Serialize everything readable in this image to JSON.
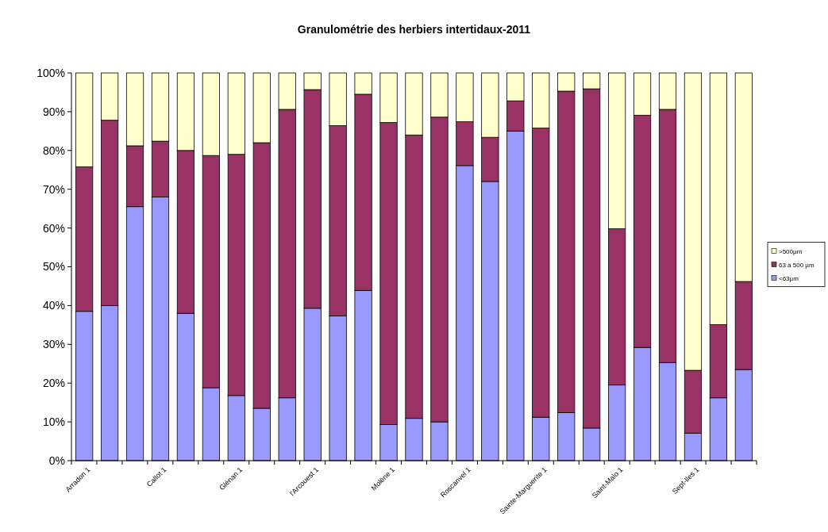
{
  "chart_data": {
    "type": "bar",
    "title": "Granulométrie des herbiers intertidaux-2011",
    "stacked": true,
    "categories": [
      "Arradon 1",
      null,
      null,
      "Callot 1",
      null,
      null,
      "Glénan 1",
      null,
      null,
      "l'Arcouest 1",
      null,
      null,
      "Molène 1",
      null,
      null,
      "Roscanvel 1",
      null,
      null,
      "Sainte-Marguerite 1",
      null,
      null,
      "Saint-Malo 1",
      null,
      null,
      "Sept-Iles 1",
      null,
      null
    ],
    "series": [
      {
        "name": "<63µm",
        "color": "#9999ff",
        "values": [
          38.5,
          40,
          65.5,
          68,
          38,
          18.8,
          16.8,
          13.5,
          16.2,
          39.3,
          37.3,
          43.9,
          9.3,
          10.9,
          10,
          76.1,
          72,
          85,
          11.2,
          12.4,
          8.4,
          19.5,
          29.2,
          25.3,
          7.1,
          16.2,
          23.5
        ]
      },
      {
        "name": "63 à 500 µm",
        "color": "#993366",
        "values": [
          37.3,
          47.8,
          15.7,
          14.4,
          42,
          59.9,
          62.2,
          68.5,
          74.4,
          56.4,
          49.1,
          50.6,
          77.9,
          73.1,
          78.6,
          11.3,
          11.4,
          7.8,
          74.6,
          82.9,
          87.5,
          40.3,
          59.9,
          65.3,
          16.2,
          18.9,
          22.7
        ]
      },
      {
        "name": ">500µm",
        "color": "#ffffcc",
        "values": [
          24.2,
          12.2,
          18.8,
          17.6,
          20,
          21.3,
          21,
          18,
          9.4,
          4.3,
          13.6,
          5.5,
          12.8,
          16,
          11.4,
          12.6,
          16.6,
          7.2,
          14.2,
          4.7,
          4.1,
          40.2,
          10.9,
          9.4,
          76.7,
          64.9,
          53.8
        ]
      }
    ],
    "ylim": [
      0,
      100
    ],
    "yticks": [
      {
        "value": 0,
        "label": "0%"
      },
      {
        "value": 10,
        "label": "10%"
      },
      {
        "value": 20,
        "label": "20%"
      },
      {
        "value": 30,
        "label": "30%"
      },
      {
        "value": 40,
        "label": "40%"
      },
      {
        "value": 50,
        "label": "50%"
      },
      {
        "value": 60,
        "label": "60%"
      },
      {
        "value": 70,
        "label": "70%"
      },
      {
        "value": 80,
        "label": "80%"
      },
      {
        "value": 90,
        "label": "90%"
      },
      {
        "value": 100,
        "label": "100%"
      }
    ],
    "legend": "right"
  }
}
